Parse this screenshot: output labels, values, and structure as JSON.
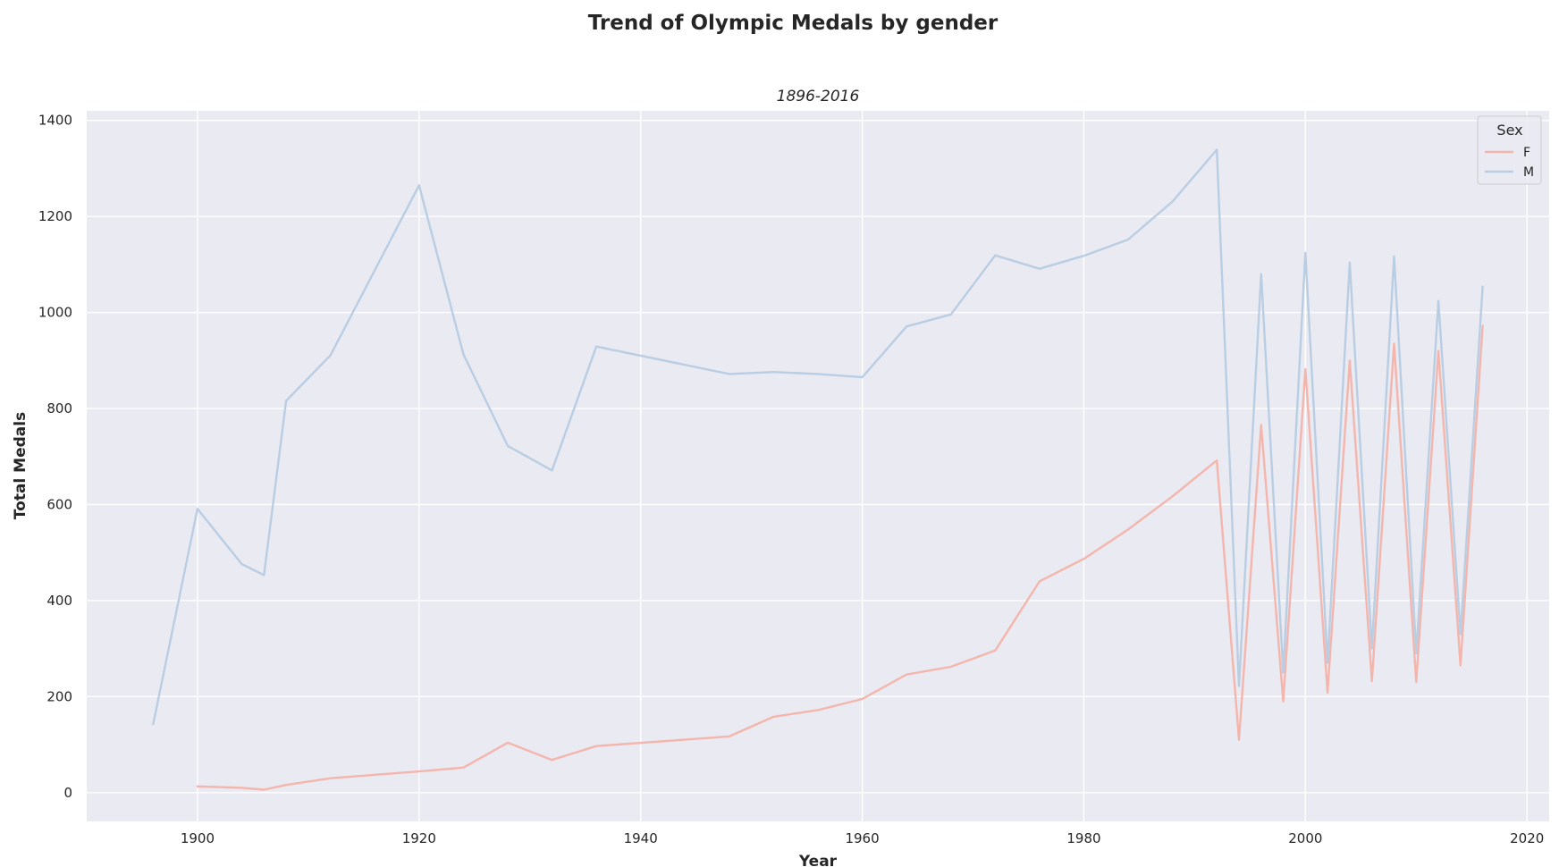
{
  "chart_data": {
    "type": "line",
    "title": "Trend of Olympic Medals by gender",
    "subtitle": "1896-2016",
    "xlabel": "Year",
    "ylabel": "Total Medals",
    "xlim": [
      1890,
      2022
    ],
    "ylim": [
      -60,
      1420
    ],
    "xticks": [
      1900,
      1920,
      1940,
      1960,
      1980,
      2000,
      2020
    ],
    "yticks": [
      0,
      200,
      400,
      600,
      800,
      1000,
      1200,
      1400
    ],
    "grid": true,
    "legend": {
      "title": "Sex",
      "placement": "top-right"
    },
    "colors": {
      "background": "#eaeaf2",
      "grid": "#ffffff",
      "F": "#f4b6ac",
      "M": "#b9cde3"
    },
    "series": [
      {
        "name": "F",
        "x": [
          1900,
          1904,
          1906,
          1908,
          1912,
          1920,
          1924,
          1928,
          1932,
          1936,
          1948,
          1952,
          1956,
          1960,
          1964,
          1968,
          1972,
          1976,
          1980,
          1984,
          1988,
          1992,
          1994,
          1996,
          1998,
          2000,
          2002,
          2004,
          2006,
          2008,
          2010,
          2012,
          2014,
          2016
        ],
        "values": [
          13,
          10,
          6,
          16,
          30,
          44,
          52,
          104,
          68,
          97,
          117,
          158,
          172,
          195,
          246,
          262,
          296,
          440,
          487,
          548,
          617,
          692,
          110,
          766,
          190,
          882,
          208,
          900,
          232,
          935,
          230,
          920,
          265,
          972
        ]
      },
      {
        "name": "M",
        "x": [
          1896,
          1900,
          1904,
          1906,
          1908,
          1912,
          1920,
          1924,
          1928,
          1932,
          1936,
          1948,
          1952,
          1956,
          1960,
          1964,
          1968,
          1972,
          1976,
          1980,
          1984,
          1988,
          1992,
          1994,
          1996,
          1998,
          2000,
          2002,
          2004,
          2006,
          2008,
          2010,
          2012,
          2014,
          2016
        ],
        "values": [
          143,
          591,
          476,
          453,
          816,
          911,
          1265,
          913,
          722,
          671,
          929,
          872,
          876,
          872,
          865,
          971,
          996,
          1119,
          1091,
          1118,
          1152,
          1231,
          1339,
          222,
          1080,
          250,
          1124,
          270,
          1104,
          300,
          1117,
          290,
          1024,
          330,
          1054
        ]
      }
    ]
  }
}
